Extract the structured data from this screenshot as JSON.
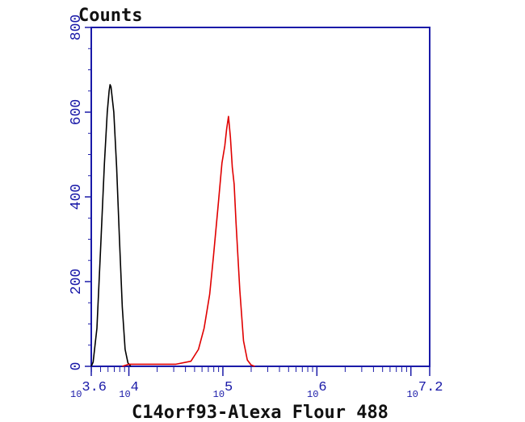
{
  "chart_data": {
    "type": "line",
    "title": "",
    "ylabel": "Counts",
    "xlabel": "C14orf93-Alexa Flour 488",
    "x_scale": "log10",
    "xlim": [
      3.6,
      7.2
    ],
    "ylim": [
      0,
      800
    ],
    "y_ticks": [
      "0",
      "200",
      "400",
      "600",
      "800"
    ],
    "x_tick_labels": [
      {
        "base": "10",
        "exp": "3.6",
        "pos": 3.6
      },
      {
        "base": "10",
        "exp": "4",
        "pos": 4
      },
      {
        "base": "10",
        "exp": "5",
        "pos": 5
      },
      {
        "base": "10",
        "exp": "6",
        "pos": 6
      },
      {
        "base": "10",
        "exp": "7.2",
        "pos": 7.2
      }
    ],
    "grid": false,
    "colors": {
      "axis": "#1a1aa8",
      "control": "#000000",
      "sample": "#e00000"
    },
    "series": [
      {
        "color": "#000000",
        "points": [
          [
            3.6,
            0
          ],
          [
            3.62,
            10
          ],
          [
            3.66,
            90
          ],
          [
            3.7,
            280
          ],
          [
            3.74,
            480
          ],
          [
            3.77,
            600
          ],
          [
            3.79,
            650
          ],
          [
            3.8,
            665
          ],
          [
            3.81,
            660
          ],
          [
            3.84,
            600
          ],
          [
            3.87,
            470
          ],
          [
            3.9,
            300
          ],
          [
            3.93,
            140
          ],
          [
            3.96,
            40
          ],
          [
            3.99,
            8
          ],
          [
            4.02,
            0
          ]
        ]
      },
      {
        "color": "#e00000",
        "points": [
          [
            3.93,
            0
          ],
          [
            4.0,
            5
          ],
          [
            4.2,
            5
          ],
          [
            4.5,
            5
          ],
          [
            4.66,
            12
          ],
          [
            4.74,
            40
          ],
          [
            4.8,
            90
          ],
          [
            4.86,
            170
          ],
          [
            4.9,
            260
          ],
          [
            4.95,
            380
          ],
          [
            4.99,
            480
          ],
          [
            5.02,
            520
          ],
          [
            5.04,
            560
          ],
          [
            5.06,
            590
          ],
          [
            5.08,
            540
          ],
          [
            5.1,
            470
          ],
          [
            5.12,
            430
          ],
          [
            5.14,
            340
          ],
          [
            5.18,
            180
          ],
          [
            5.22,
            60
          ],
          [
            5.26,
            15
          ],
          [
            5.3,
            3
          ],
          [
            5.34,
            0
          ]
        ]
      }
    ]
  }
}
